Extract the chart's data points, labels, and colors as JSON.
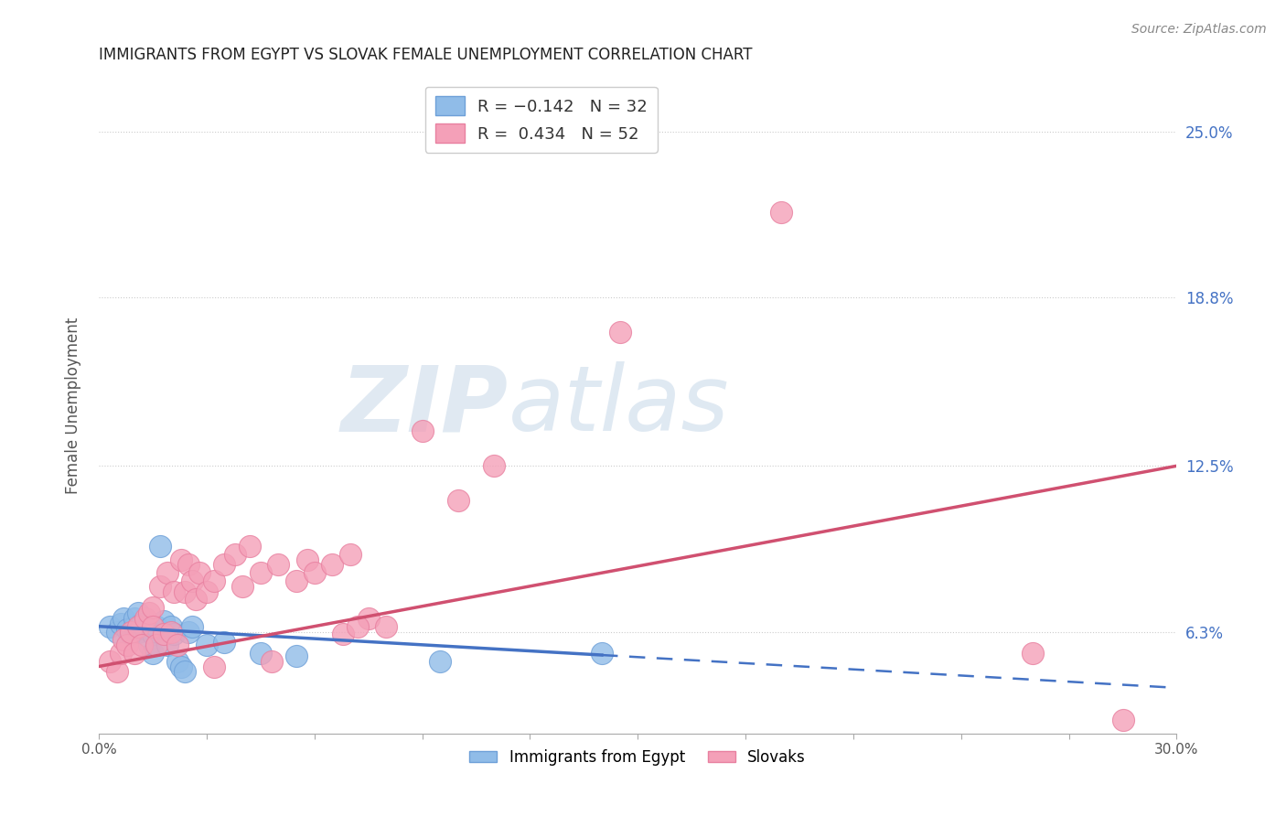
{
  "title": "IMMIGRANTS FROM EGYPT VS SLOVAK FEMALE UNEMPLOYMENT CORRELATION CHART",
  "source": "Source: ZipAtlas.com",
  "ylabel": "Female Unemployment",
  "xmin": 0.0,
  "xmax": 30.0,
  "ymin": 2.5,
  "ymax": 27.0,
  "ytick_vals": [
    6.3,
    12.5,
    18.8,
    25.0
  ],
  "ytick_labels": [
    "6.3%",
    "12.5%",
    "18.8%",
    "25.0%"
  ],
  "color_egypt": "#90bce8",
  "color_slovak": "#f4a0b8",
  "color_egypt_edge": "#6ea0d8",
  "color_slovak_edge": "#e880a0",
  "trendline_egypt_color": "#4472c4",
  "trendline_slovak_color": "#d05070",
  "watermark_zip": "ZIP",
  "watermark_atlas": "atlas",
  "egypt_points": [
    [
      0.3,
      6.5
    ],
    [
      0.5,
      6.3
    ],
    [
      0.6,
      6.6
    ],
    [
      0.7,
      6.8
    ],
    [
      0.8,
      6.4
    ],
    [
      0.9,
      6.2
    ],
    [
      1.0,
      6.5
    ],
    [
      1.0,
      6.8
    ],
    [
      1.1,
      7.0
    ],
    [
      1.1,
      6.3
    ],
    [
      1.2,
      6.6
    ],
    [
      1.3,
      6.4
    ],
    [
      1.4,
      5.8
    ],
    [
      1.5,
      6.2
    ],
    [
      1.5,
      5.5
    ],
    [
      1.6,
      6.5
    ],
    [
      1.7,
      9.5
    ],
    [
      1.8,
      6.7
    ],
    [
      1.9,
      5.8
    ],
    [
      2.0,
      6.5
    ],
    [
      2.1,
      6.2
    ],
    [
      2.2,
      5.2
    ],
    [
      2.3,
      5.0
    ],
    [
      2.4,
      4.8
    ],
    [
      2.5,
      6.3
    ],
    [
      2.6,
      6.5
    ],
    [
      3.0,
      5.8
    ],
    [
      3.5,
      5.9
    ],
    [
      4.5,
      5.5
    ],
    [
      5.5,
      5.4
    ],
    [
      9.5,
      5.2
    ],
    [
      14.0,
      5.5
    ]
  ],
  "slovak_points": [
    [
      0.3,
      5.2
    ],
    [
      0.5,
      4.8
    ],
    [
      0.6,
      5.5
    ],
    [
      0.7,
      6.0
    ],
    [
      0.8,
      5.8
    ],
    [
      0.9,
      6.3
    ],
    [
      1.0,
      5.5
    ],
    [
      1.1,
      6.5
    ],
    [
      1.2,
      5.8
    ],
    [
      1.3,
      6.8
    ],
    [
      1.4,
      7.0
    ],
    [
      1.5,
      7.2
    ],
    [
      1.5,
      6.5
    ],
    [
      1.6,
      5.8
    ],
    [
      1.7,
      8.0
    ],
    [
      1.8,
      6.2
    ],
    [
      1.9,
      8.5
    ],
    [
      2.0,
      6.3
    ],
    [
      2.1,
      7.8
    ],
    [
      2.2,
      5.8
    ],
    [
      2.3,
      9.0
    ],
    [
      2.4,
      7.8
    ],
    [
      2.5,
      8.8
    ],
    [
      2.6,
      8.2
    ],
    [
      2.7,
      7.5
    ],
    [
      2.8,
      8.5
    ],
    [
      3.0,
      7.8
    ],
    [
      3.2,
      8.2
    ],
    [
      3.5,
      8.8
    ],
    [
      3.8,
      9.2
    ],
    [
      4.0,
      8.0
    ],
    [
      4.2,
      9.5
    ],
    [
      4.5,
      8.5
    ],
    [
      5.0,
      8.8
    ],
    [
      5.5,
      8.2
    ],
    [
      5.8,
      9.0
    ],
    [
      6.0,
      8.5
    ],
    [
      6.5,
      8.8
    ],
    [
      7.0,
      9.2
    ],
    [
      7.5,
      6.8
    ],
    [
      8.0,
      6.5
    ],
    [
      9.0,
      13.8
    ],
    [
      10.0,
      11.2
    ],
    [
      3.2,
      5.0
    ],
    [
      4.8,
      5.2
    ],
    [
      6.8,
      6.2
    ],
    [
      7.2,
      6.5
    ],
    [
      11.0,
      12.5
    ],
    [
      14.5,
      17.5
    ],
    [
      19.0,
      22.0
    ],
    [
      26.0,
      5.5
    ],
    [
      28.5,
      3.0
    ]
  ],
  "trendline_egypt_x0": 0.0,
  "trendline_egypt_y0": 6.5,
  "trendline_egypt_x1": 30.0,
  "trendline_egypt_y1": 4.2,
  "trendline_egypt_solid_end": 14.0,
  "trendline_slovak_x0": 0.0,
  "trendline_slovak_y0": 5.0,
  "trendline_slovak_x1": 30.0,
  "trendline_slovak_y1": 12.5
}
